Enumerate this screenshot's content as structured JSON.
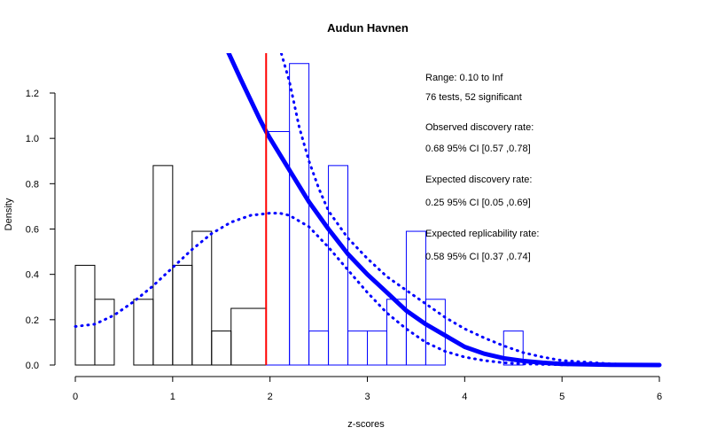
{
  "chart_data": {
    "type": "bar",
    "title": "Audun Havnen",
    "xlabel": "z-scores",
    "ylabel": "Density",
    "xlim": [
      0,
      6
    ],
    "ylim": [
      0,
      1.35
    ],
    "x_ticks": [
      0,
      1,
      2,
      3,
      4,
      5,
      6
    ],
    "y_ticks": [
      0.0,
      0.2,
      0.4,
      0.6,
      0.8,
      1.0,
      1.2
    ],
    "bin_width": 0.2,
    "histogram_nonsignificant": {
      "color": "#000000",
      "bins": [
        {
          "x0": 0.0,
          "x1": 0.2,
          "density": 0.44
        },
        {
          "x0": 0.2,
          "x1": 0.4,
          "density": 0.29
        },
        {
          "x0": 0.4,
          "x1": 0.6,
          "density": 0.0
        },
        {
          "x0": 0.6,
          "x1": 0.8,
          "density": 0.29
        },
        {
          "x0": 0.8,
          "x1": 1.0,
          "density": 0.88
        },
        {
          "x0": 1.0,
          "x1": 1.2,
          "density": 0.44
        },
        {
          "x0": 1.2,
          "x1": 1.4,
          "density": 0.59
        },
        {
          "x0": 1.4,
          "x1": 1.6,
          "density": 0.15
        },
        {
          "x0": 1.6,
          "x1": 1.96,
          "density": 0.25
        }
      ]
    },
    "histogram_significant": {
      "color": "#0000ff",
      "bins": [
        {
          "x0": 1.96,
          "x1": 2.2,
          "density": 1.03
        },
        {
          "x0": 2.2,
          "x1": 2.4,
          "density": 1.33
        },
        {
          "x0": 2.4,
          "x1": 2.6,
          "density": 0.15
        },
        {
          "x0": 2.6,
          "x1": 2.8,
          "density": 0.88
        },
        {
          "x0": 2.8,
          "x1": 3.0,
          "density": 0.15
        },
        {
          "x0": 3.0,
          "x1": 3.2,
          "density": 0.15
        },
        {
          "x0": 3.2,
          "x1": 3.4,
          "density": 0.29
        },
        {
          "x0": 3.4,
          "x1": 3.6,
          "density": 0.59
        },
        {
          "x0": 3.6,
          "x1": 3.8,
          "density": 0.29
        },
        {
          "x0": 3.8,
          "x1": 4.0,
          "density": 0.0
        },
        {
          "x0": 4.0,
          "x1": 4.2,
          "density": 0.0
        },
        {
          "x0": 4.2,
          "x1": 4.4,
          "density": 0.0
        },
        {
          "x0": 4.4,
          "x1": 4.6,
          "density": 0.15
        }
      ]
    },
    "significance_line": {
      "x": 1.96,
      "color": "#ff0000"
    },
    "curves": [
      {
        "style": "solid-thick",
        "color": "#0000ff",
        "points": [
          [
            1.55,
            1.4
          ],
          [
            1.7,
            1.26
          ],
          [
            1.8,
            1.17
          ],
          [
            1.9,
            1.08
          ],
          [
            1.96,
            1.03
          ],
          [
            2.0,
            1.0
          ],
          [
            2.2,
            0.86
          ],
          [
            2.4,
            0.72
          ],
          [
            2.6,
            0.6
          ],
          [
            2.8,
            0.49
          ],
          [
            3.0,
            0.4
          ],
          [
            3.2,
            0.32
          ],
          [
            3.4,
            0.24
          ],
          [
            3.6,
            0.18
          ],
          [
            3.8,
            0.13
          ],
          [
            4.0,
            0.08
          ],
          [
            4.2,
            0.05
          ],
          [
            4.4,
            0.03
          ],
          [
            4.6,
            0.018
          ],
          [
            4.8,
            0.01
          ],
          [
            5.0,
            0.005
          ],
          [
            5.5,
            0.001
          ],
          [
            6.0,
            0.0
          ]
        ]
      },
      {
        "style": "dotted",
        "color": "#0000ff",
        "points": [
          [
            0.0,
            0.17
          ],
          [
            0.2,
            0.18
          ],
          [
            0.4,
            0.22
          ],
          [
            0.6,
            0.28
          ],
          [
            0.8,
            0.35
          ],
          [
            1.0,
            0.43
          ],
          [
            1.2,
            0.51
          ],
          [
            1.4,
            0.58
          ],
          [
            1.6,
            0.63
          ],
          [
            1.8,
            0.66
          ],
          [
            2.0,
            0.67
          ],
          [
            2.1,
            0.67
          ],
          [
            2.2,
            0.66
          ],
          [
            2.4,
            0.61
          ],
          [
            2.6,
            0.52
          ],
          [
            2.8,
            0.42
          ],
          [
            3.0,
            0.32
          ],
          [
            3.2,
            0.23
          ],
          [
            3.4,
            0.16
          ],
          [
            3.6,
            0.1
          ],
          [
            3.8,
            0.06
          ],
          [
            4.0,
            0.035
          ],
          [
            4.2,
            0.02
          ],
          [
            4.4,
            0.01
          ],
          [
            4.6,
            0.005
          ],
          [
            5.0,
            0.001
          ],
          [
            6.0,
            0.0
          ]
        ]
      },
      {
        "style": "dotted",
        "color": "#0000ff",
        "points": [
          [
            2.1,
            1.4
          ],
          [
            2.2,
            1.25
          ],
          [
            2.3,
            1.05
          ],
          [
            2.4,
            0.9
          ],
          [
            2.5,
            0.78
          ],
          [
            2.6,
            0.68
          ],
          [
            2.8,
            0.56
          ],
          [
            3.0,
            0.47
          ],
          [
            3.2,
            0.39
          ],
          [
            3.4,
            0.33
          ],
          [
            3.6,
            0.27
          ],
          [
            3.8,
            0.21
          ],
          [
            4.0,
            0.16
          ],
          [
            4.2,
            0.12
          ],
          [
            4.4,
            0.085
          ],
          [
            4.6,
            0.055
          ],
          [
            4.8,
            0.035
          ],
          [
            5.0,
            0.02
          ],
          [
            5.5,
            0.005
          ],
          [
            6.0,
            0.0
          ]
        ]
      }
    ],
    "annotations": [
      "Range: 0.10 to Inf",
      "76 tests, 52 significant",
      "Observed discovery rate:",
      "0.68  95% CI [0.57 ,0.78]",
      "Expected discovery rate:",
      "0.25  95% CI [0.05 ,0.69]",
      "Expected replicability rate:",
      "0.58  95% CI [0.37 ,0.74]"
    ]
  }
}
